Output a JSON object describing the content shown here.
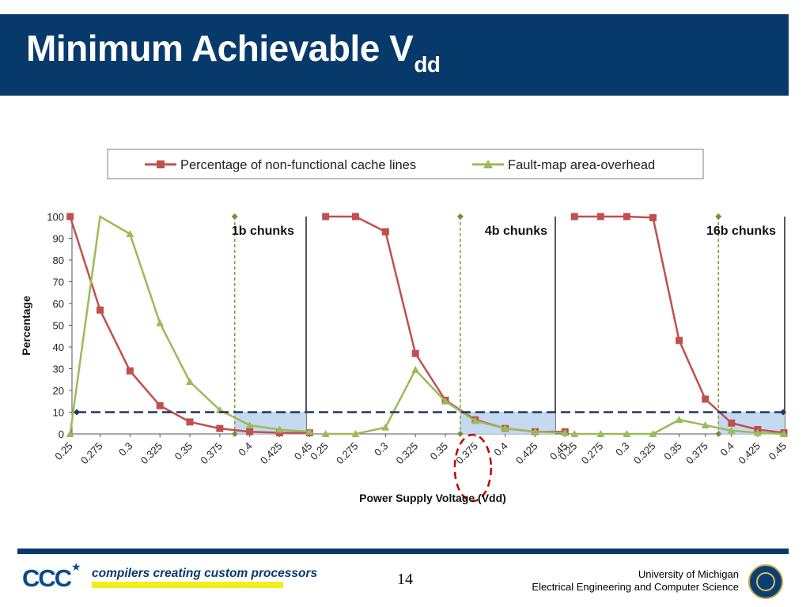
{
  "slide": {
    "title_main": "Minimum Achievable V",
    "title_sub": "dd",
    "page_number": "14",
    "logo_text": "CCC",
    "tagline": "compilers creating custom processors",
    "university_line1": "University of Michigan",
    "university_line2": "Electrical Engineering and Computer Science",
    "colors": {
      "title_bar": "#073a6b",
      "series_red": "#c0504d",
      "series_green": "#9bbb59",
      "threshold": "#1f3864",
      "shade": "#c5d9f1"
    }
  },
  "chart_data": {
    "type": "line",
    "ylabel": "Percentage",
    "xlabel": "Power Supply Voltage (Vdd)",
    "ylim": [
      0,
      100
    ],
    "yticks": [
      0,
      10,
      20,
      30,
      40,
      50,
      60,
      70,
      80,
      90,
      100
    ],
    "threshold": 10,
    "legend_position": "top",
    "legend": [
      "Percentage of non-functional cache lines",
      "Fault-map area-overhead"
    ],
    "x": [
      "0.25",
      "0.275",
      "0.3",
      "0.325",
      "0.35",
      "0.375",
      "0.4",
      "0.425",
      "0.45"
    ],
    "highlight_label": "0.375",
    "panels": [
      {
        "label": "1b chunks",
        "min_vdd": 0.3875,
        "series": [
          {
            "name": "Percentage of non-functional cache lines",
            "values": [
              100,
              57,
              29,
              13,
              5.5,
              2.5,
              1,
              0.5,
              0.5
            ]
          },
          {
            "name": "Fault-map area-overhead",
            "values": [
              0,
              103,
              92,
              51,
              24,
              11,
              4,
              2,
              1
            ]
          }
        ]
      },
      {
        "label": "4b chunks",
        "min_vdd": 0.3625,
        "series": [
          {
            "name": "Percentage of non-functional cache lines",
            "values": [
              100,
              100,
              93,
              37,
              15.5,
              6.5,
              2.5,
              1,
              1
            ]
          },
          {
            "name": "Fault-map area-overhead",
            "values": [
              0,
              0,
              3,
              29.5,
              15,
              6,
              2.5,
              1,
              0.5
            ]
          }
        ]
      },
      {
        "label": "16b chunks",
        "min_vdd": 0.3875,
        "series": [
          {
            "name": "Percentage of non-functional cache lines",
            "values": [
              100,
              100,
              100,
              99.5,
              43,
              16,
              5,
              2,
              0.5
            ]
          },
          {
            "name": "Fault-map area-overhead",
            "values": [
              0,
              0,
              0,
              0,
              6.5,
              4,
              1.5,
              0.5,
              0
            ]
          }
        ]
      }
    ]
  }
}
